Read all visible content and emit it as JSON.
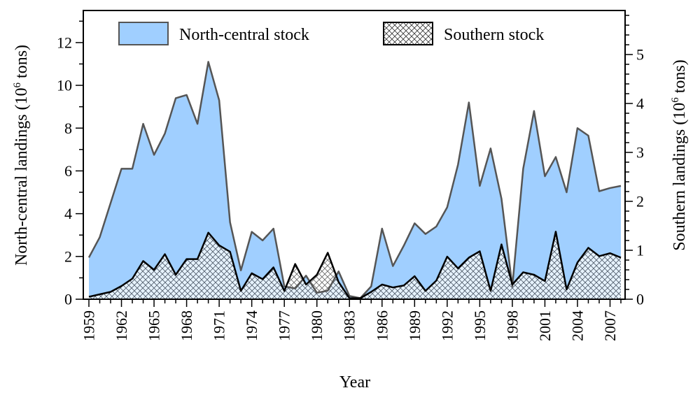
{
  "chart_data": {
    "type": "area",
    "xlabel": "Year",
    "ylabel_left": "North-central landings (10",
    "ylabel_left_sup": "6",
    "ylabel_left_tail": " tons)",
    "ylabel_right": "Southern landings (10",
    "ylabel_right_sup": "6",
    "ylabel_right_tail": " tons)",
    "xlim": [
      1959,
      2008
    ],
    "ylim_left": [
      0,
      13.5
    ],
    "ylim_right": [
      0,
      5.9
    ],
    "x_ticks": [
      1959,
      1962,
      1965,
      1968,
      1971,
      1974,
      1977,
      1980,
      1983,
      1986,
      1989,
      1992,
      1995,
      1998,
      2001,
      2004,
      2007
    ],
    "y_ticks_left": [
      0,
      2,
      4,
      6,
      8,
      10,
      12
    ],
    "y_ticks_right": [
      0,
      1,
      2,
      3,
      4,
      5
    ],
    "legend": {
      "position": "top",
      "entries": [
        "North-central stock",
        "Southern stock"
      ]
    },
    "colors": {
      "north_fill": "#a0cfff",
      "north_line": "#555555",
      "south_line": "#000000",
      "hatch": "#333333"
    },
    "series": [
      {
        "name": "North-central stock",
        "axis": "left",
        "years": [
          1959,
          1960,
          1961,
          1962,
          1963,
          1964,
          1965,
          1966,
          1967,
          1968,
          1969,
          1970,
          1971,
          1972,
          1973,
          1974,
          1975,
          1976,
          1977,
          1978,
          1979,
          1980,
          1981,
          1982,
          1983,
          1984,
          1985,
          1986,
          1987,
          1988,
          1989,
          1990,
          1991,
          1992,
          1993,
          1994,
          1995,
          1996,
          1997,
          1998,
          1999,
          2000,
          2001,
          2002,
          2003,
          2004,
          2005,
          2006,
          2007,
          2008
        ],
        "values": [
          1.95,
          2.9,
          4.5,
          6.1,
          6.1,
          8.2,
          6.75,
          7.75,
          9.4,
          9.55,
          8.2,
          11.1,
          9.3,
          3.6,
          1.35,
          3.15,
          2.75,
          3.3,
          0.6,
          0.5,
          1.1,
          0.3,
          0.4,
          1.3,
          0.15,
          0.05,
          0.6,
          3.3,
          1.55,
          2.5,
          3.55,
          3.05,
          3.4,
          4.3,
          6.3,
          9.2,
          5.3,
          7.05,
          4.7,
          0.6,
          6.1,
          8.8,
          5.75,
          6.65,
          5.0,
          8.0,
          7.65,
          5.05,
          5.2,
          5.3
        ]
      },
      {
        "name": "Southern stock",
        "axis": "right",
        "years": [
          1959,
          1960,
          1961,
          1962,
          1963,
          1964,
          1965,
          1966,
          1967,
          1968,
          1969,
          1970,
          1971,
          1972,
          1973,
          1974,
          1975,
          1976,
          1977,
          1978,
          1979,
          1980,
          1981,
          1982,
          1983,
          1984,
          1985,
          1986,
          1987,
          1988,
          1989,
          1990,
          1991,
          1992,
          1993,
          1994,
          1995,
          1996,
          1997,
          1998,
          1999,
          2000,
          2001,
          2002,
          2003,
          2004,
          2005,
          2006,
          2007,
          2008
        ],
        "values": [
          0.05,
          0.1,
          0.15,
          0.27,
          0.42,
          0.78,
          0.6,
          0.92,
          0.5,
          0.82,
          0.82,
          1.36,
          1.1,
          0.97,
          0.17,
          0.53,
          0.41,
          0.65,
          0.17,
          0.72,
          0.3,
          0.5,
          0.95,
          0.35,
          0.02,
          0.02,
          0.15,
          0.3,
          0.24,
          0.28,
          0.47,
          0.17,
          0.38,
          0.87,
          0.63,
          0.85,
          0.98,
          0.17,
          1.12,
          0.3,
          0.55,
          0.5,
          0.37,
          1.38,
          0.2,
          0.75,
          1.05,
          0.88,
          0.94,
          0.85
        ]
      }
    ]
  }
}
